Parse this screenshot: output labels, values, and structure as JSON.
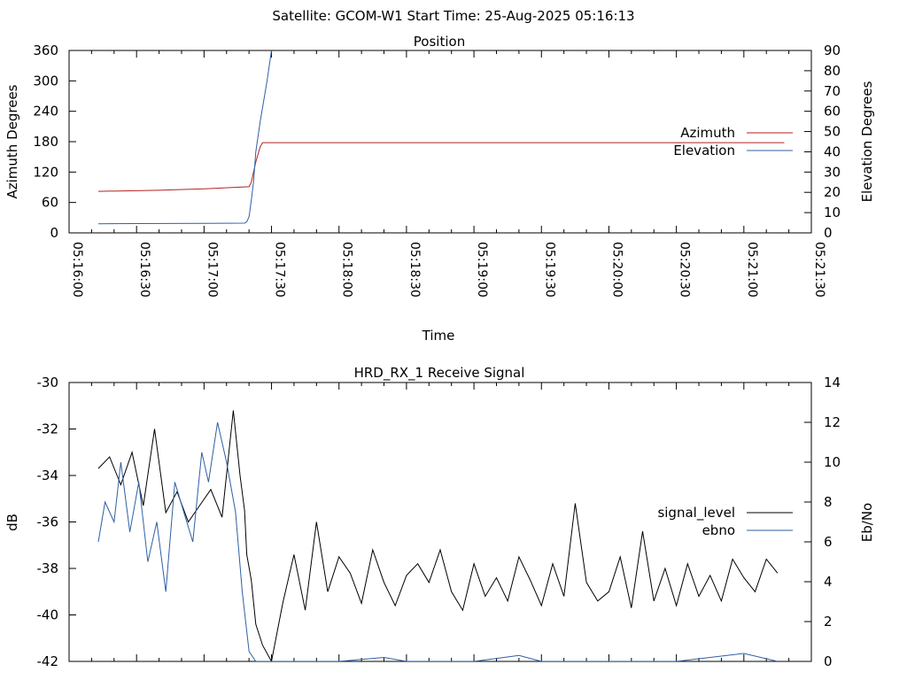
{
  "header": {
    "title": "Satellite: GCOM-W1    Start Time: 25-Aug-2025 05:16:13"
  },
  "chart_data": [
    {
      "type": "line",
      "title": "Position",
      "xlabel": "Time",
      "ylabel": "Azimuth Degrees",
      "y2label": "Elevation Degrees",
      "xlim": [
        "05:16:00",
        "05:21:30"
      ],
      "ylim": [
        0,
        360
      ],
      "y2lim": [
        0,
        90
      ],
      "xticks": [
        "05:16:00",
        "05:16:30",
        "05:17:00",
        "05:17:30",
        "05:18:00",
        "05:18:30",
        "05:19:00",
        "05:19:30",
        "05:20:00",
        "05:20:30",
        "05:21:00",
        "05:21:30"
      ],
      "yticks": [
        "0",
        "60",
        "120",
        "180",
        "240",
        "300",
        "360"
      ],
      "y2ticks": [
        "0",
        "10",
        "20",
        "30",
        "40",
        "50",
        "60",
        "70",
        "80",
        "90"
      ],
      "legend_position": "right",
      "series": [
        {
          "name": "Azimuth",
          "axis": "left",
          "color": "#b22222",
          "x": [
            "05:16:13",
            "05:16:40",
            "05:17:00",
            "05:17:20",
            "05:17:21",
            "05:17:23",
            "05:17:25",
            "05:17:26",
            "05:17:30",
            "05:18:00",
            "05:19:00",
            "05:20:00",
            "05:21:00",
            "05:21:18"
          ],
          "y": [
            82,
            84,
            87,
            91,
            100,
            140,
            170,
            178,
            178,
            178,
            178,
            178,
            178,
            178
          ]
        },
        {
          "name": "Elevation",
          "axis": "right",
          "color": "#2f5fa5",
          "x": [
            "05:16:13",
            "05:16:30",
            "05:17:00",
            "05:17:18",
            "05:17:19",
            "05:17:20",
            "05:17:21",
            "05:17:22",
            "05:17:23",
            "05:17:25",
            "05:17:28",
            "05:17:30"
          ],
          "y": [
            4.5,
            4.6,
            4.7,
            4.8,
            5.5,
            8,
            16,
            25,
            40,
            55,
            75,
            90
          ]
        }
      ]
    },
    {
      "type": "line",
      "title": "HRD_RX_1 Receive Signal",
      "xlabel": "",
      "ylabel": "dB",
      "y2label": "Eb/No",
      "xlim": [
        "05:16:00",
        "05:21:30"
      ],
      "ylim": [
        -42,
        -30
      ],
      "y2lim": [
        0,
        14
      ],
      "yticks": [
        "-30",
        "-32",
        "-34",
        "-36",
        "-38",
        "-40",
        "-42"
      ],
      "y2ticks": [
        "0",
        "2",
        "4",
        "6",
        "8",
        "10",
        "12",
        "14"
      ],
      "legend_position": "right",
      "series": [
        {
          "name": "signal_level",
          "axis": "left",
          "color": "#000000",
          "x": [
            "05:16:13",
            "05:16:18",
            "05:16:23",
            "05:16:28",
            "05:16:33",
            "05:16:38",
            "05:16:43",
            "05:16:48",
            "05:16:53",
            "05:16:58",
            "05:17:03",
            "05:17:08",
            "05:17:13",
            "05:17:16",
            "05:17:18",
            "05:17:19",
            "05:17:21",
            "05:17:23",
            "05:17:26",
            "05:17:30",
            "05:17:35",
            "05:17:40",
            "05:17:45",
            "05:17:50",
            "05:17:55",
            "05:18:00",
            "05:18:05",
            "05:18:10",
            "05:18:15",
            "05:18:20",
            "05:18:25",
            "05:18:30",
            "05:18:35",
            "05:18:40",
            "05:18:45",
            "05:18:50",
            "05:18:55",
            "05:19:00",
            "05:19:05",
            "05:19:10",
            "05:19:15",
            "05:19:20",
            "05:19:25",
            "05:19:30",
            "05:19:35",
            "05:19:40",
            "05:19:45",
            "05:19:50",
            "05:19:55",
            "05:20:00",
            "05:20:05",
            "05:20:10",
            "05:20:15",
            "05:20:20",
            "05:20:25",
            "05:20:30",
            "05:20:35",
            "05:20:40",
            "05:20:45",
            "05:20:50",
            "05:20:55",
            "05:21:00",
            "05:21:05",
            "05:21:10",
            "05:21:15"
          ],
          "y": [
            -33.7,
            -33.2,
            -34.4,
            -33.0,
            -35.3,
            -32.0,
            -35.6,
            -34.7,
            -36.0,
            -35.3,
            -34.6,
            -35.8,
            -31.2,
            -34.0,
            -35.5,
            -37.4,
            -38.5,
            -40.4,
            -41.3,
            -42.0,
            -39.5,
            -37.4,
            -39.8,
            -36.0,
            -39.0,
            -37.5,
            -38.2,
            -39.5,
            -37.2,
            -38.6,
            -39.6,
            -38.3,
            -37.8,
            -38.6,
            -37.2,
            -39.0,
            -39.8,
            -37.8,
            -39.2,
            -38.4,
            -39.4,
            -37.5,
            -38.5,
            -39.6,
            -37.8,
            -39.2,
            -35.2,
            -38.6,
            -39.4,
            -39.0,
            -37.5,
            -39.7,
            -36.4,
            -39.4,
            -38.0,
            -39.6,
            -37.8,
            -39.2,
            -38.3,
            -39.4,
            -37.6,
            -38.4,
            -39.0,
            -37.6,
            -38.2
          ]
        },
        {
          "name": "ebno",
          "axis": "right",
          "color": "#2f5fa5",
          "x": [
            "05:16:13",
            "05:16:16",
            "05:16:20",
            "05:16:23",
            "05:16:27",
            "05:16:31",
            "05:16:35",
            "05:16:39",
            "05:16:43",
            "05:16:47",
            "05:16:51",
            "05:16:55",
            "05:16:59",
            "05:17:02",
            "05:17:06",
            "05:17:10",
            "05:17:14",
            "05:17:17",
            "05:17:20",
            "05:17:23",
            "05:17:25",
            "05:17:28",
            "05:18:00",
            "05:18:20",
            "05:18:30",
            "05:19:00",
            "05:19:20",
            "05:19:30",
            "05:20:00",
            "05:20:30",
            "05:21:00",
            "05:21:15"
          ],
          "y": [
            6.0,
            8.0,
            7.0,
            10.0,
            6.5,
            9.0,
            5.0,
            7.0,
            3.5,
            9.0,
            7.5,
            6.0,
            10.5,
            9.0,
            12.0,
            10.0,
            7.5,
            3.5,
            0.5,
            0.0,
            0.0,
            0.0,
            0.0,
            0.2,
            0.0,
            0.0,
            0.3,
            0.0,
            0.0,
            0.0,
            0.4,
            0.0
          ]
        }
      ]
    }
  ]
}
